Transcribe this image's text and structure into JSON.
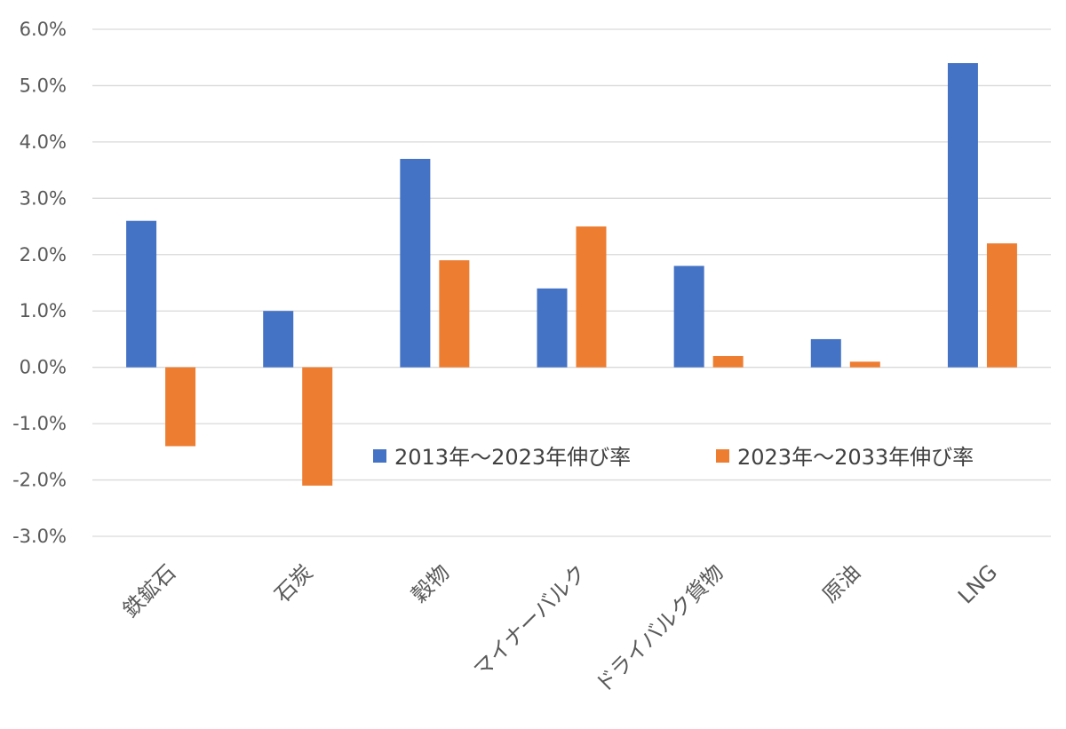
{
  "chart_data": {
    "type": "bar",
    "categories": [
      "鉄鉱石",
      "石炭",
      "穀物",
      "マイナーバルク",
      "ドライバルク貨物",
      "原油",
      "LNG"
    ],
    "series": [
      {
        "name": "2013年～2023年伸び率",
        "values": [
          2.6,
          1.0,
          3.7,
          1.4,
          1.8,
          0.5,
          5.4
        ],
        "color": "#4472c4"
      },
      {
        "name": "2023年～2033年伸び率",
        "values": [
          -1.4,
          -2.1,
          1.9,
          2.5,
          0.2,
          0.1,
          2.2
        ],
        "color": "#ed7d31"
      }
    ],
    "ylim": [
      -3.0,
      6.0
    ],
    "y_ticks": [
      "6.0%",
      "5.0%",
      "4.0%",
      "3.0%",
      "2.0%",
      "1.0%",
      "0.0%",
      "-1.0%",
      "-2.0%",
      "-3.0%"
    ],
    "y_unit": "%",
    "grid": true,
    "legend_position": "center-right",
    "title": "",
    "xlabel": "",
    "ylabel": ""
  }
}
